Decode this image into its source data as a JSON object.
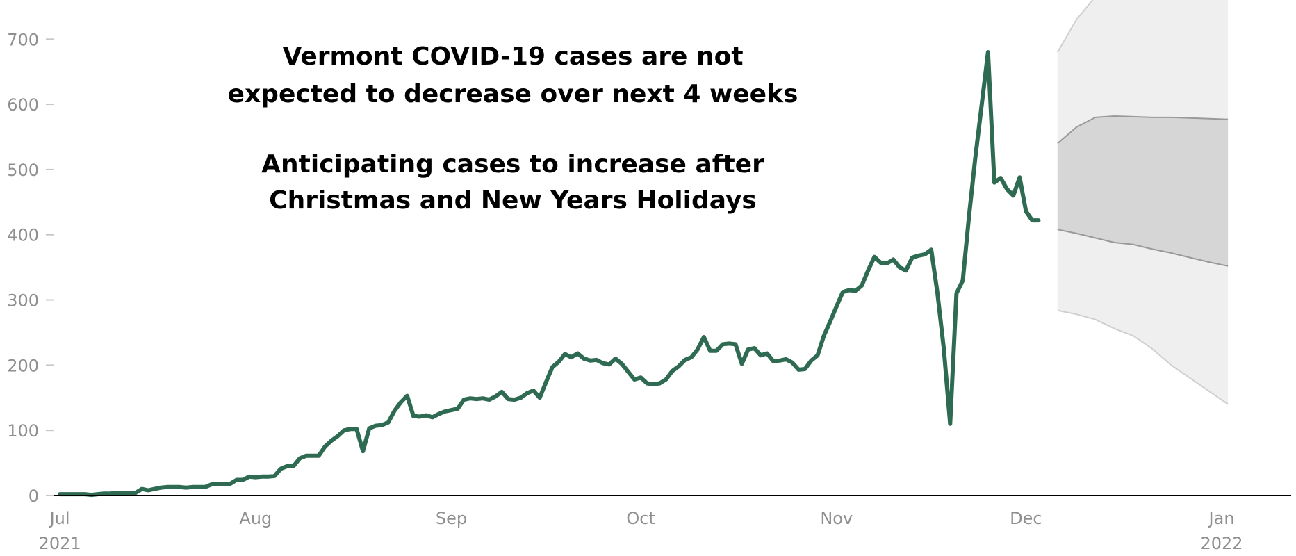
{
  "chart_data": {
    "type": "line",
    "title": [
      "Vermont COVID-19 cases are not",
      "expected to decrease over next 4 weeks"
    ],
    "subtitle": [
      "Anticipating cases to increase after",
      "Christmas and New Years Holidays"
    ],
    "xlabel": "",
    "ylabel": "",
    "x_range": [
      "2021-06-30",
      "2022-01-12"
    ],
    "ylim": [
      0,
      760
    ],
    "y_ticks": [
      0,
      100,
      200,
      300,
      400,
      500,
      600,
      700
    ],
    "x_ticks": [
      {
        "date": "2021-07-01",
        "label": "Jul",
        "year": "2021"
      },
      {
        "date": "2021-08-01",
        "label": "Aug",
        "year": ""
      },
      {
        "date": "2021-09-01",
        "label": "Sep",
        "year": ""
      },
      {
        "date": "2021-10-01",
        "label": "Oct",
        "year": ""
      },
      {
        "date": "2021-11-01",
        "label": "Nov",
        "year": ""
      },
      {
        "date": "2021-12-01",
        "label": "Dec",
        "year": ""
      },
      {
        "date": "2022-01-01",
        "label": "Jan",
        "year": "2022"
      }
    ],
    "grid": false,
    "colors": {
      "line": "#2e6b52",
      "outer_band": "#efefef",
      "inner_band": "#d6d6d6",
      "band_edge": "#999999",
      "axis": "#000000",
      "tick_text": "#8f8f8f"
    },
    "series": [
      {
        "type": "line",
        "points": [
          [
            "2021-07-01",
            2
          ],
          [
            "2021-07-02",
            2
          ],
          [
            "2021-07-03",
            2
          ],
          [
            "2021-07-04",
            2
          ],
          [
            "2021-07-05",
            2
          ],
          [
            "2021-07-06",
            1
          ],
          [
            "2021-07-07",
            2
          ],
          [
            "2021-07-08",
            3
          ],
          [
            "2021-07-09",
            3
          ],
          [
            "2021-07-10",
            4
          ],
          [
            "2021-07-11",
            4
          ],
          [
            "2021-07-12",
            4
          ],
          [
            "2021-07-13",
            4
          ],
          [
            "2021-07-14",
            10
          ],
          [
            "2021-07-15",
            8
          ],
          [
            "2021-07-16",
            10
          ],
          [
            "2021-07-17",
            12
          ],
          [
            "2021-07-18",
            13
          ],
          [
            "2021-07-19",
            13
          ],
          [
            "2021-07-20",
            13
          ],
          [
            "2021-07-21",
            12
          ],
          [
            "2021-07-22",
            13
          ],
          [
            "2021-07-23",
            13
          ],
          [
            "2021-07-24",
            13
          ],
          [
            "2021-07-25",
            17
          ],
          [
            "2021-07-26",
            18
          ],
          [
            "2021-07-27",
            18
          ],
          [
            "2021-07-28",
            18
          ],
          [
            "2021-07-29",
            24
          ],
          [
            "2021-07-30",
            24
          ],
          [
            "2021-07-31",
            29
          ],
          [
            "2021-08-01",
            28
          ],
          [
            "2021-08-02",
            29
          ],
          [
            "2021-08-03",
            29
          ],
          [
            "2021-08-04",
            30
          ],
          [
            "2021-08-05",
            41
          ],
          [
            "2021-08-06",
            45
          ],
          [
            "2021-08-07",
            45
          ],
          [
            "2021-08-08",
            57
          ],
          [
            "2021-08-09",
            61
          ],
          [
            "2021-08-10",
            61
          ],
          [
            "2021-08-11",
            61
          ],
          [
            "2021-08-12",
            75
          ],
          [
            "2021-08-13",
            84
          ],
          [
            "2021-08-14",
            91
          ],
          [
            "2021-08-15",
            100
          ],
          [
            "2021-08-16",
            102
          ],
          [
            "2021-08-17",
            102
          ],
          [
            "2021-08-18",
            68
          ],
          [
            "2021-08-19",
            103
          ],
          [
            "2021-08-20",
            107
          ],
          [
            "2021-08-21",
            108
          ],
          [
            "2021-08-22",
            112
          ],
          [
            "2021-08-23",
            130
          ],
          [
            "2021-08-24",
            143
          ],
          [
            "2021-08-25",
            153
          ],
          [
            "2021-08-26",
            122
          ],
          [
            "2021-08-27",
            121
          ],
          [
            "2021-08-28",
            123
          ],
          [
            "2021-08-29",
            120
          ],
          [
            "2021-08-30",
            125
          ],
          [
            "2021-08-31",
            129
          ],
          [
            "2021-09-01",
            131
          ],
          [
            "2021-09-02",
            133
          ],
          [
            "2021-09-03",
            147
          ],
          [
            "2021-09-04",
            149
          ],
          [
            "2021-09-05",
            148
          ],
          [
            "2021-09-06",
            149
          ],
          [
            "2021-09-07",
            147
          ],
          [
            "2021-09-08",
            152
          ],
          [
            "2021-09-09",
            159
          ],
          [
            "2021-09-10",
            148
          ],
          [
            "2021-09-11",
            147
          ],
          [
            "2021-09-12",
            150
          ],
          [
            "2021-09-13",
            157
          ],
          [
            "2021-09-14",
            161
          ],
          [
            "2021-09-15",
            150
          ],
          [
            "2021-09-16",
            174
          ],
          [
            "2021-09-17",
            197
          ],
          [
            "2021-09-18",
            205
          ],
          [
            "2021-09-19",
            217
          ],
          [
            "2021-09-20",
            212
          ],
          [
            "2021-09-21",
            218
          ],
          [
            "2021-09-22",
            210
          ],
          [
            "2021-09-23",
            207
          ],
          [
            "2021-09-24",
            208
          ],
          [
            "2021-09-25",
            203
          ],
          [
            "2021-09-26",
            201
          ],
          [
            "2021-09-27",
            210
          ],
          [
            "2021-09-28",
            202
          ],
          [
            "2021-09-29",
            190
          ],
          [
            "2021-09-30",
            178
          ],
          [
            "2021-10-01",
            181
          ],
          [
            "2021-10-02",
            172
          ],
          [
            "2021-10-03",
            171
          ],
          [
            "2021-10-04",
            172
          ],
          [
            "2021-10-05",
            178
          ],
          [
            "2021-10-06",
            191
          ],
          [
            "2021-10-07",
            198
          ],
          [
            "2021-10-08",
            208
          ],
          [
            "2021-10-09",
            212
          ],
          [
            "2021-10-10",
            224
          ],
          [
            "2021-10-11",
            243
          ],
          [
            "2021-10-12",
            222
          ],
          [
            "2021-10-13",
            222
          ],
          [
            "2021-10-14",
            232
          ],
          [
            "2021-10-15",
            233
          ],
          [
            "2021-10-16",
            232
          ],
          [
            "2021-10-17",
            202
          ],
          [
            "2021-10-18",
            224
          ],
          [
            "2021-10-19",
            226
          ],
          [
            "2021-10-20",
            215
          ],
          [
            "2021-10-21",
            218
          ],
          [
            "2021-10-22",
            206
          ],
          [
            "2021-10-23",
            207
          ],
          [
            "2021-10-24",
            209
          ],
          [
            "2021-10-25",
            204
          ],
          [
            "2021-10-26",
            193
          ],
          [
            "2021-10-27",
            194
          ],
          [
            "2021-10-28",
            207
          ],
          [
            "2021-10-29",
            215
          ],
          [
            "2021-10-30",
            245
          ],
          [
            "2021-10-31",
            267
          ],
          [
            "2021-11-01",
            290
          ],
          [
            "2021-11-02",
            312
          ],
          [
            "2021-11-03",
            315
          ],
          [
            "2021-11-04",
            314
          ],
          [
            "2021-11-05",
            322
          ],
          [
            "2021-11-06",
            345
          ],
          [
            "2021-11-07",
            366
          ],
          [
            "2021-11-08",
            357
          ],
          [
            "2021-11-09",
            356
          ],
          [
            "2021-11-10",
            362
          ],
          [
            "2021-11-11",
            350
          ],
          [
            "2021-11-12",
            345
          ],
          [
            "2021-11-13",
            365
          ],
          [
            "2021-11-14",
            368
          ],
          [
            "2021-11-15",
            370
          ],
          [
            "2021-11-16",
            377
          ],
          [
            "2021-11-17",
            310
          ],
          [
            "2021-11-18",
            225
          ],
          [
            "2021-11-19",
            110
          ],
          [
            "2021-11-20",
            310
          ],
          [
            "2021-11-21",
            330
          ],
          [
            "2021-11-22",
            430
          ],
          [
            "2021-11-23",
            520
          ],
          [
            "2021-11-24",
            600
          ],
          [
            "2021-11-25",
            680
          ],
          [
            "2021-11-26",
            480
          ],
          [
            "2021-11-27",
            487
          ],
          [
            "2021-11-28",
            470
          ],
          [
            "2021-11-29",
            460
          ],
          [
            "2021-11-30",
            488
          ],
          [
            "2021-12-01",
            436
          ],
          [
            "2021-12-02",
            422
          ],
          [
            "2021-12-03",
            422
          ]
        ]
      },
      {
        "type": "band",
        "role": "outer",
        "points": [
          [
            "2021-12-06",
            284,
            680
          ],
          [
            "2021-12-09",
            278,
            730
          ],
          [
            "2021-12-12",
            270,
            765
          ],
          [
            "2021-12-15",
            256,
            776
          ],
          [
            "2021-12-18",
            245,
            770
          ],
          [
            "2021-12-21",
            225,
            764
          ],
          [
            "2021-12-24",
            200,
            765
          ],
          [
            "2021-12-27",
            180,
            768
          ],
          [
            "2021-12-30",
            160,
            770
          ],
          [
            "2022-01-02",
            140,
            770
          ]
        ]
      },
      {
        "type": "band",
        "role": "inner",
        "points": [
          [
            "2021-12-06",
            408,
            540
          ],
          [
            "2021-12-09",
            402,
            565
          ],
          [
            "2021-12-12",
            395,
            580
          ],
          [
            "2021-12-15",
            388,
            582
          ],
          [
            "2021-12-18",
            385,
            581
          ],
          [
            "2021-12-21",
            378,
            580
          ],
          [
            "2021-12-24",
            372,
            580
          ],
          [
            "2021-12-27",
            365,
            579
          ],
          [
            "2021-12-30",
            358,
            578
          ],
          [
            "2022-01-02",
            352,
            577
          ]
        ]
      }
    ]
  }
}
